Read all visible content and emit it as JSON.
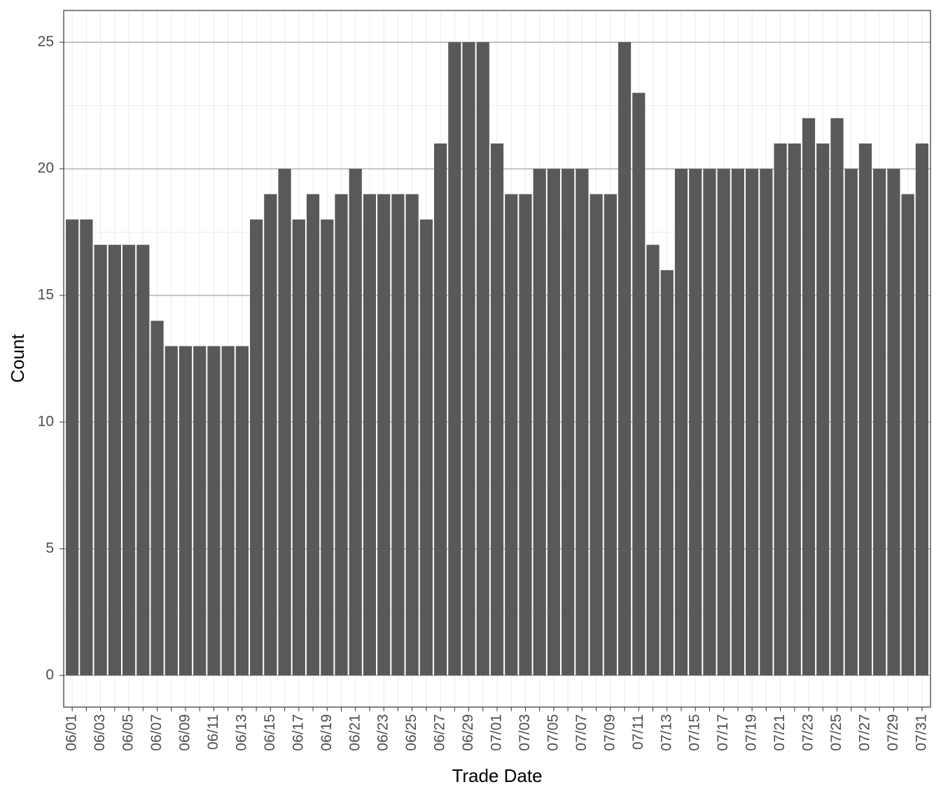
{
  "chart_data": {
    "type": "bar",
    "x_label": "Trade Date",
    "y_label": "Count",
    "categories": [
      "06/01",
      null,
      "06/03",
      null,
      "06/05",
      null,
      "06/07",
      null,
      "06/09",
      null,
      "06/11",
      null,
      "06/13",
      null,
      "06/15",
      null,
      "06/17",
      null,
      "06/19",
      null,
      "06/21",
      null,
      "06/23",
      null,
      "06/25",
      null,
      "06/27",
      null,
      "06/29",
      null,
      "07/01",
      null,
      "07/03",
      null,
      "07/05",
      null,
      "07/07",
      null,
      "07/09",
      null,
      "07/11",
      null,
      "07/13",
      null,
      "07/15",
      null,
      "07/17",
      null,
      "07/19",
      null,
      "07/21",
      null,
      "07/23",
      null,
      "07/25",
      null,
      "07/27",
      null,
      "07/29",
      null,
      "07/31"
    ],
    "values": [
      18,
      18,
      17,
      17,
      17,
      17,
      14,
      13,
      13,
      13,
      13,
      13,
      13,
      18,
      19,
      20,
      18,
      19,
      18,
      19,
      20,
      19,
      19,
      19,
      19,
      18,
      21,
      25,
      25,
      25,
      21,
      19,
      19,
      20,
      20,
      20,
      20,
      19,
      19,
      25,
      23,
      17,
      16,
      20,
      20,
      20,
      20,
      20,
      20,
      20,
      21,
      21,
      22,
      21,
      22,
      20,
      21,
      20,
      20,
      19,
      21
    ],
    "color": "#595959",
    "ylim": [
      -1.25,
      26.25
    ],
    "yticks": [
      0,
      5,
      10,
      15,
      20,
      25
    ],
    "grid": true
  }
}
